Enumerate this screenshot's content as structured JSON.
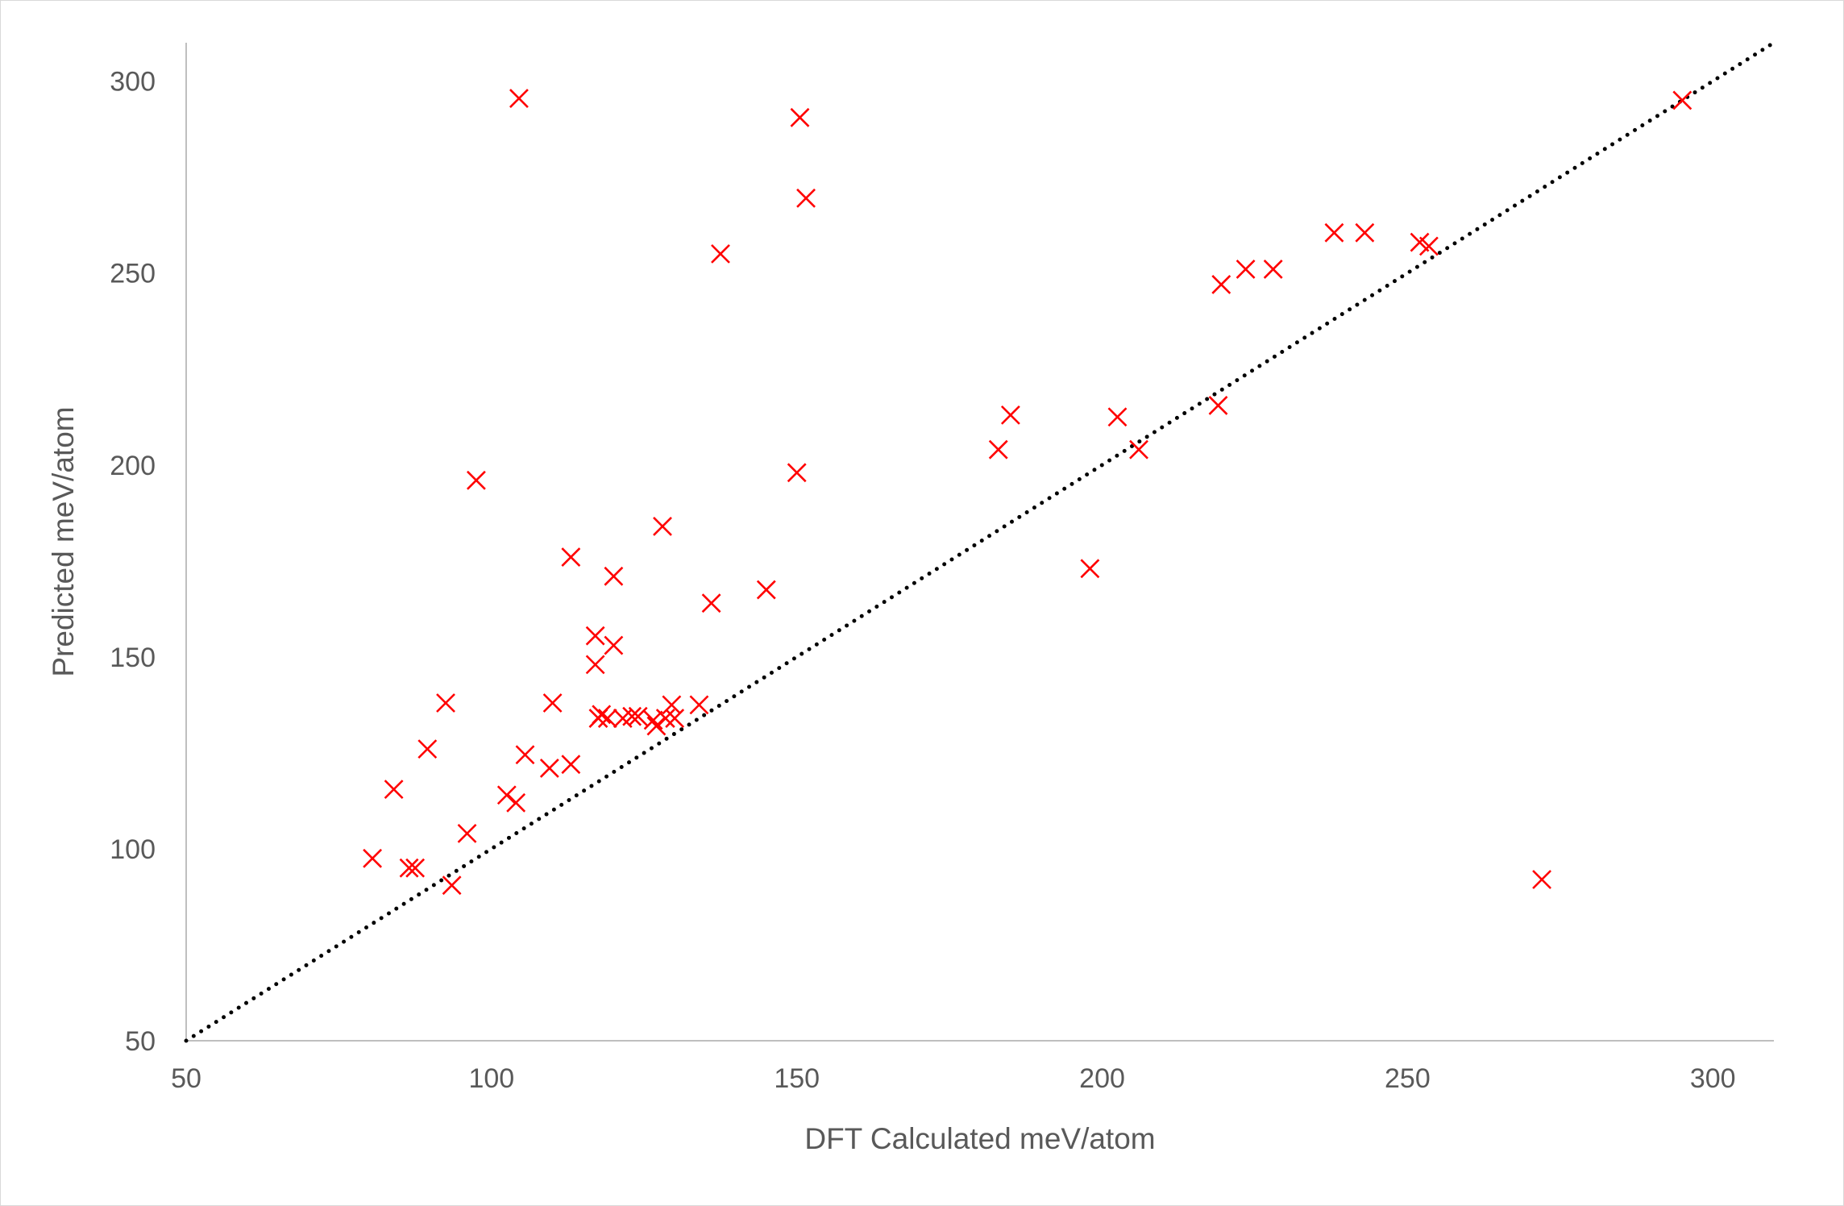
{
  "chart_data": {
    "type": "scatter",
    "title": "",
    "xlabel": "DFT Calculated meV/atom",
    "ylabel": "Predicted meV/atom",
    "xlim": [
      50,
      310
    ],
    "ylim": [
      50,
      310
    ],
    "xticks": [
      50,
      100,
      150,
      200,
      250,
      300
    ],
    "yticks": [
      50,
      100,
      150,
      200,
      250,
      300
    ],
    "grid": false,
    "legend": "none",
    "marker": "x",
    "marker_color": "#ff0000",
    "reference_line": {
      "style": "dotted",
      "color": "#000000",
      "from": [
        50,
        50
      ],
      "to": [
        310,
        310
      ]
    },
    "series": [
      {
        "points": [
          [
            80.5,
            97.5
          ],
          [
            84,
            115.5
          ],
          [
            86.5,
            95
          ],
          [
            87.5,
            95
          ],
          [
            89.5,
            126
          ],
          [
            92.5,
            138
          ],
          [
            93.5,
            90.5
          ],
          [
            96,
            104
          ],
          [
            97.5,
            196
          ],
          [
            102.5,
            114
          ],
          [
            104,
            112
          ],
          [
            104.5,
            295.5
          ],
          [
            105.5,
            124.5
          ],
          [
            109.5,
            121
          ],
          [
            110,
            138
          ],
          [
            113,
            176
          ],
          [
            113,
            122
          ],
          [
            117,
            155.5
          ],
          [
            117,
            148
          ],
          [
            117.5,
            134
          ],
          [
            118,
            135
          ],
          [
            119,
            134
          ],
          [
            120,
            171
          ],
          [
            120,
            153
          ],
          [
            121.5,
            134
          ],
          [
            123,
            134.5
          ],
          [
            124,
            134.5
          ],
          [
            126.5,
            133.5
          ],
          [
            127,
            132
          ],
          [
            128,
            184
          ],
          [
            128.5,
            134
          ],
          [
            129.5,
            137.5
          ],
          [
            130,
            134
          ],
          [
            134,
            137.5
          ],
          [
            136,
            164
          ],
          [
            137.5,
            255
          ],
          [
            145,
            167.5
          ],
          [
            150,
            198
          ],
          [
            150.5,
            290.5
          ],
          [
            151.5,
            269.5
          ],
          [
            183,
            204
          ],
          [
            185,
            213
          ],
          [
            198,
            173
          ],
          [
            202.5,
            212.5
          ],
          [
            206,
            204
          ],
          [
            219,
            215.5
          ],
          [
            219.5,
            247
          ],
          [
            223.5,
            251
          ],
          [
            228,
            251
          ],
          [
            238,
            260.5
          ],
          [
            243,
            260.5
          ],
          [
            252,
            258
          ],
          [
            253.5,
            257
          ],
          [
            272,
            92
          ],
          [
            295,
            295
          ]
        ]
      }
    ]
  }
}
